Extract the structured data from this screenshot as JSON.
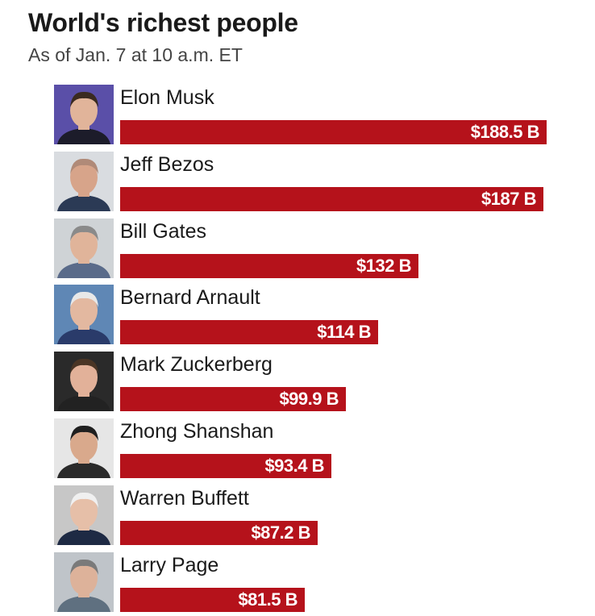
{
  "header": {
    "title": "World's richest people",
    "subtitle": "As of Jan. 7 at 10 a.m. ET"
  },
  "colors": {
    "bar": "#b5121b",
    "value_text": "#ffffff"
  },
  "chart_data": {
    "type": "bar",
    "orientation": "horizontal",
    "title": "World's richest people",
    "subtitle": "As of Jan. 7 at 10 a.m. ET",
    "xlabel": "",
    "ylabel": "",
    "unit": "B",
    "grid": false,
    "categories": [
      "Elon Musk",
      "Jeff Bezos",
      "Bill Gates",
      "Bernard Arnault",
      "Mark Zuckerberg",
      "Zhong Shanshan",
      "Warren Buffett",
      "Larry Page"
    ],
    "values": [
      188.5,
      187,
      132,
      114,
      99.9,
      93.4,
      87.2,
      81.5
    ],
    "value_labels": [
      "$188.5 B",
      "$187 B",
      "$132 B",
      "$114 B",
      "$99.9 B",
      "$93.4 B",
      "$87.2 B",
      "$81.5 B"
    ],
    "photo_icons": [
      "portrait-elon-musk",
      "portrait-jeff-bezos",
      "portrait-bill-gates",
      "portrait-bernard-arnault",
      "portrait-mark-zuckerberg",
      "portrait-zhong-shanshan",
      "portrait-warren-buffett",
      "portrait-larry-page"
    ]
  }
}
